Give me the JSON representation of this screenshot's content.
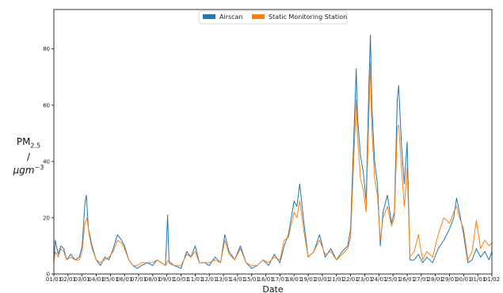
{
  "chart_data": {
    "type": "line",
    "title": "",
    "xlabel": "Date",
    "ylabel": {
      "line1_main": "PM",
      "line1_sub": "2.5",
      "line2": "/",
      "line3_main": "μgm",
      "line3_sup": "−3"
    },
    "ylim": [
      0,
      94
    ],
    "yticks": [
      0,
      20,
      40,
      60,
      80
    ],
    "xlim": [
      0,
      31
    ],
    "xtick_labels": [
      "01/01",
      "02/01",
      "03/01",
      "04/01",
      "05/01",
      "06/01",
      "07/01",
      "08/01",
      "09/01",
      "10/01",
      "11/01",
      "12/01",
      "13/01",
      "14/01",
      "15/01",
      "16/01",
      "17/01",
      "18/01",
      "19/01",
      "20/01",
      "21/01",
      "22/01",
      "23/01",
      "24/01",
      "25/01",
      "26/01",
      "27/01",
      "28/01",
      "29/01",
      "30/01",
      "31/01",
      "01/02"
    ],
    "grid": false,
    "legend_position": "top-center",
    "series": [
      {
        "name": "Airscan",
        "color": "#1f77b4",
        "points": [
          [
            0,
            5
          ],
          [
            0.1,
            12
          ],
          [
            0.3,
            7
          ],
          [
            0.5,
            10
          ],
          [
            0.7,
            9
          ],
          [
            0.9,
            5
          ],
          [
            1.2,
            7
          ],
          [
            1.5,
            5
          ],
          [
            1.8,
            6
          ],
          [
            2.0,
            10
          ],
          [
            2.2,
            25
          ],
          [
            2.3,
            28
          ],
          [
            2.45,
            16
          ],
          [
            2.7,
            10
          ],
          [
            3.0,
            5
          ],
          [
            3.3,
            3
          ],
          [
            3.6,
            6
          ],
          [
            3.9,
            5
          ],
          [
            4.2,
            9
          ],
          [
            4.5,
            14
          ],
          [
            4.8,
            12
          ],
          [
            5.0,
            10
          ],
          [
            5.3,
            5
          ],
          [
            5.6,
            3
          ],
          [
            5.9,
            2
          ],
          [
            6.2,
            3
          ],
          [
            6.6,
            4
          ],
          [
            7.0,
            3
          ],
          [
            7.3,
            5
          ],
          [
            7.6,
            4
          ],
          [
            7.9,
            3
          ],
          [
            8.05,
            21
          ],
          [
            8.15,
            4
          ],
          [
            8.5,
            3
          ],
          [
            9.0,
            2
          ],
          [
            9.4,
            8
          ],
          [
            9.7,
            6
          ],
          [
            10.0,
            10
          ],
          [
            10.3,
            4
          ],
          [
            10.7,
            4
          ],
          [
            11.0,
            3
          ],
          [
            11.4,
            6
          ],
          [
            11.8,
            4
          ],
          [
            12.1,
            14
          ],
          [
            12.4,
            8
          ],
          [
            12.8,
            5
          ],
          [
            13.2,
            10
          ],
          [
            13.6,
            4
          ],
          [
            14.0,
            2
          ],
          [
            14.4,
            3
          ],
          [
            14.8,
            5
          ],
          [
            15.2,
            3
          ],
          [
            15.6,
            7
          ],
          [
            16.0,
            4
          ],
          [
            16.3,
            10
          ],
          [
            16.6,
            14
          ],
          [
            17.0,
            26
          ],
          [
            17.2,
            24
          ],
          [
            17.4,
            32
          ],
          [
            17.7,
            18
          ],
          [
            18.0,
            6
          ],
          [
            18.4,
            8
          ],
          [
            18.8,
            14
          ],
          [
            19.2,
            6
          ],
          [
            19.6,
            9
          ],
          [
            20.0,
            5
          ],
          [
            20.4,
            8
          ],
          [
            20.8,
            10
          ],
          [
            21.0,
            16
          ],
          [
            21.2,
            45
          ],
          [
            21.4,
            73
          ],
          [
            21.5,
            55
          ],
          [
            21.7,
            42
          ],
          [
            21.9,
            36
          ],
          [
            22.1,
            26
          ],
          [
            22.3,
            68
          ],
          [
            22.4,
            85
          ],
          [
            22.5,
            60
          ],
          [
            22.7,
            40
          ],
          [
            22.9,
            32
          ],
          [
            23.1,
            10
          ],
          [
            23.3,
            22
          ],
          [
            23.6,
            28
          ],
          [
            23.9,
            18
          ],
          [
            24.1,
            22
          ],
          [
            24.3,
            62
          ],
          [
            24.4,
            67
          ],
          [
            24.6,
            46
          ],
          [
            24.8,
            32
          ],
          [
            25.0,
            47
          ],
          [
            25.2,
            5
          ],
          [
            25.5,
            5
          ],
          [
            25.8,
            7
          ],
          [
            26.1,
            4
          ],
          [
            26.4,
            6
          ],
          [
            26.8,
            4
          ],
          [
            27.2,
            9
          ],
          [
            27.6,
            12
          ],
          [
            28.0,
            16
          ],
          [
            28.3,
            20
          ],
          [
            28.5,
            27
          ],
          [
            28.7,
            22
          ],
          [
            29.0,
            14
          ],
          [
            29.3,
            4
          ],
          [
            29.6,
            5
          ],
          [
            29.9,
            9
          ],
          [
            30.2,
            6
          ],
          [
            30.5,
            8
          ],
          [
            30.8,
            5
          ],
          [
            31.0,
            8
          ]
        ]
      },
      {
        "name": "Static Monitoring Station",
        "color": "#ff7f0e",
        "points": [
          [
            0,
            4
          ],
          [
            0.1,
            8
          ],
          [
            0.3,
            6
          ],
          [
            0.5,
            9
          ],
          [
            0.7,
            8
          ],
          [
            0.9,
            5
          ],
          [
            1.2,
            6
          ],
          [
            1.5,
            5
          ],
          [
            1.8,
            5
          ],
          [
            2.0,
            8
          ],
          [
            2.2,
            18
          ],
          [
            2.35,
            20
          ],
          [
            2.5,
            14
          ],
          [
            2.7,
            9
          ],
          [
            3.0,
            5
          ],
          [
            3.3,
            4
          ],
          [
            3.6,
            5
          ],
          [
            3.9,
            6
          ],
          [
            4.2,
            8
          ],
          [
            4.5,
            12
          ],
          [
            4.8,
            11
          ],
          [
            5.0,
            9
          ],
          [
            5.3,
            5
          ],
          [
            5.6,
            3
          ],
          [
            5.9,
            3
          ],
          [
            6.2,
            4
          ],
          [
            6.6,
            4
          ],
          [
            7.0,
            4
          ],
          [
            7.3,
            5
          ],
          [
            7.6,
            4
          ],
          [
            7.9,
            3
          ],
          [
            8.1,
            5
          ],
          [
            8.5,
            3
          ],
          [
            9.0,
            3
          ],
          [
            9.4,
            7
          ],
          [
            9.7,
            6
          ],
          [
            10.0,
            8
          ],
          [
            10.3,
            4
          ],
          [
            10.7,
            4
          ],
          [
            11.0,
            4
          ],
          [
            11.4,
            5
          ],
          [
            11.8,
            4
          ],
          [
            12.1,
            12
          ],
          [
            12.4,
            7
          ],
          [
            12.8,
            5
          ],
          [
            13.2,
            9
          ],
          [
            13.6,
            4
          ],
          [
            14.0,
            3
          ],
          [
            14.4,
            3
          ],
          [
            14.8,
            5
          ],
          [
            15.2,
            4
          ],
          [
            15.6,
            6
          ],
          [
            16.0,
            5
          ],
          [
            16.3,
            12
          ],
          [
            16.6,
            13
          ],
          [
            17.0,
            22
          ],
          [
            17.2,
            20
          ],
          [
            17.4,
            26
          ],
          [
            17.7,
            15
          ],
          [
            18.0,
            6
          ],
          [
            18.4,
            8
          ],
          [
            18.8,
            12
          ],
          [
            19.2,
            7
          ],
          [
            19.6,
            8
          ],
          [
            20.0,
            5
          ],
          [
            20.4,
            7
          ],
          [
            20.8,
            9
          ],
          [
            21.0,
            13
          ],
          [
            21.2,
            38
          ],
          [
            21.4,
            62
          ],
          [
            21.5,
            48
          ],
          [
            21.7,
            34
          ],
          [
            21.9,
            30
          ],
          [
            22.1,
            22
          ],
          [
            22.3,
            58
          ],
          [
            22.4,
            75
          ],
          [
            22.5,
            52
          ],
          [
            22.7,
            34
          ],
          [
            22.9,
            28
          ],
          [
            23.1,
            12
          ],
          [
            23.3,
            20
          ],
          [
            23.6,
            24
          ],
          [
            23.9,
            17
          ],
          [
            24.1,
            20
          ],
          [
            24.3,
            52
          ],
          [
            24.4,
            53
          ],
          [
            24.6,
            38
          ],
          [
            24.8,
            24
          ],
          [
            25.0,
            38
          ],
          [
            25.2,
            6
          ],
          [
            25.5,
            8
          ],
          [
            25.8,
            14
          ],
          [
            26.1,
            5
          ],
          [
            26.4,
            8
          ],
          [
            26.8,
            6
          ],
          [
            27.2,
            14
          ],
          [
            27.6,
            20
          ],
          [
            28.0,
            18
          ],
          [
            28.3,
            22
          ],
          [
            28.5,
            24
          ],
          [
            28.7,
            20
          ],
          [
            29.0,
            16
          ],
          [
            29.3,
            5
          ],
          [
            29.6,
            8
          ],
          [
            29.9,
            19
          ],
          [
            30.2,
            9
          ],
          [
            30.5,
            12
          ],
          [
            30.8,
            10
          ],
          [
            31.0,
            11
          ]
        ]
      }
    ]
  }
}
